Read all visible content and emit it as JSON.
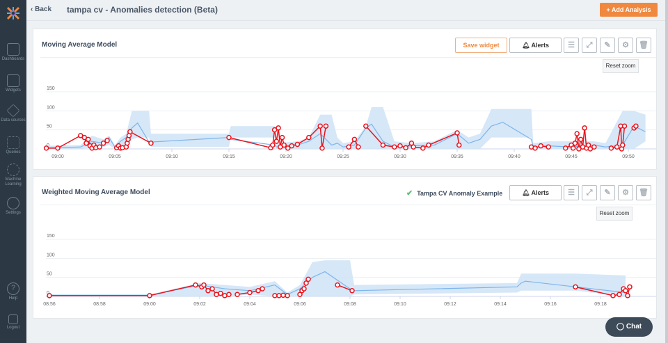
{
  "header": {
    "back": "Back",
    "title": "tampa cv - Anomalies detection (Beta)",
    "add_analysis": "+ Add Analysis"
  },
  "sidebar": {
    "items": [
      {
        "label": "Dashboards"
      },
      {
        "label": "Widgets"
      },
      {
        "label": "Data sources"
      },
      {
        "label": "Queries"
      },
      {
        "label": "Machine Learning"
      },
      {
        "label": "Settings"
      },
      {
        "label": "Help"
      },
      {
        "label": "Logout"
      }
    ]
  },
  "widgets": [
    {
      "title": "Moving Average Model",
      "save": "Save widget",
      "alerts": "Alerts",
      "reset_zoom": "Reset zoom"
    },
    {
      "title": "Weighted Moving Average Model",
      "linked": "Tampa CV Anomaly Example",
      "alerts": "Alerts",
      "reset_zoom": "Reset zoom"
    }
  ],
  "chat": "Chat",
  "colors": {
    "expected": "#7cb5ec",
    "band": "#cfe3f6",
    "anomaly": "#e8141e",
    "accent": "#f0883e"
  },
  "chart_data": [
    {
      "type": "line",
      "title": "Moving Average Model",
      "yticks": [
        "0",
        "50",
        "100",
        "150"
      ],
      "ylim": [
        0,
        150
      ],
      "xticks": [
        "09:00",
        "09:05",
        "09:10",
        "09:15",
        "09:20",
        "09:25",
        "09:30",
        "09:35",
        "09:40",
        "09:45",
        "09:50"
      ],
      "expected": [
        [
          "08:59:00",
          2,
          0,
          8
        ],
        [
          "09:02:00",
          5,
          0,
          10
        ],
        [
          "09:03:00",
          20,
          5,
          35
        ],
        [
          "09:04:00",
          15,
          5,
          25
        ],
        [
          "09:04:30",
          30,
          10,
          35
        ],
        [
          "09:05:00",
          5,
          0,
          10
        ],
        [
          "09:05:30",
          20,
          0,
          30
        ],
        [
          "09:06:00",
          30,
          10,
          40
        ],
        [
          "09:06:30",
          55,
          25,
          100
        ],
        [
          "09:07:00",
          68,
          30,
          100
        ],
        [
          "09:08:00",
          18,
          30,
          100
        ],
        [
          "09:08:10",
          18,
          5,
          40
        ],
        [
          "09:15:00",
          30,
          5,
          40
        ],
        [
          "09:15:10",
          25,
          30,
          60
        ],
        [
          "09:19:00",
          10,
          30,
          60
        ],
        [
          "09:19:10",
          5,
          0,
          15
        ],
        [
          "09:21:00",
          10,
          0,
          20
        ],
        [
          "09:22:00",
          20,
          0,
          30
        ],
        [
          "09:23:00",
          40,
          0,
          90
        ],
        [
          "09:24:00",
          10,
          0,
          90
        ],
        [
          "09:24:30",
          15,
          0,
          30
        ],
        [
          "09:25:00",
          5,
          0,
          15
        ],
        [
          "09:26:00",
          10,
          0,
          20
        ],
        [
          "09:27:00",
          55,
          0,
          60
        ],
        [
          "09:27:30",
          65,
          0,
          110
        ],
        [
          "09:28:30",
          20,
          0,
          110
        ],
        [
          "09:29:30",
          5,
          0,
          20
        ],
        [
          "09:31:00",
          8,
          0,
          15
        ],
        [
          "09:33:00",
          10,
          0,
          20
        ],
        [
          "09:35:00",
          40,
          0,
          50
        ],
        [
          "09:36:00",
          15,
          0,
          30
        ],
        [
          "09:37:00",
          25,
          0,
          40
        ],
        [
          "09:38:00",
          60,
          30,
          105
        ],
        [
          "09:39:00",
          70,
          30,
          105
        ],
        [
          "09:41:30",
          25,
          30,
          105
        ],
        [
          "09:41:40",
          5,
          0,
          15
        ],
        [
          "09:43:00",
          8,
          0,
          20
        ],
        [
          "09:45:00",
          5,
          0,
          20
        ],
        [
          "09:47:00",
          10,
          0,
          20
        ],
        [
          "09:48:00",
          5,
          0,
          15
        ],
        [
          "09:49:30",
          10,
          0,
          100
        ],
        [
          "09:50:30",
          60,
          0,
          100
        ],
        [
          "09:51:30",
          45,
          20,
          90
        ]
      ],
      "anomalies": [
        [
          "08:59:00",
          2
        ],
        [
          "09:00:00",
          2
        ],
        [
          "09:02:00",
          35
        ],
        [
          "09:02:20",
          30
        ],
        [
          "09:02:30",
          15
        ],
        [
          "09:02:40",
          25
        ],
        [
          "09:02:50",
          8
        ],
        [
          "09:03:00",
          2
        ],
        [
          "09:03:10",
          10
        ],
        [
          "09:03:20",
          3
        ],
        [
          "09:03:40",
          5
        ],
        [
          "09:04:00",
          15
        ],
        [
          "09:04:20",
          22
        ],
        null,
        [
          "09:05:10",
          3
        ],
        [
          "09:05:20",
          8
        ],
        [
          "09:05:30",
          2
        ],
        [
          "09:05:40",
          3
        ],
        null,
        [
          "09:06:00",
          5
        ],
        [
          "09:06:05",
          15
        ],
        [
          "09:06:10",
          25
        ],
        [
          "09:06:15",
          35
        ],
        [
          "09:06:20",
          45
        ],
        [
          "09:08:10",
          15
        ],
        null,
        [
          "09:15:00",
          30
        ],
        [
          "09:18:40",
          3
        ],
        [
          "09:18:50",
          10
        ],
        [
          "09:19:00",
          50
        ],
        [
          "09:19:10",
          20
        ],
        [
          "09:19:20",
          55
        ],
        [
          "09:19:30",
          5
        ],
        [
          "09:19:40",
          30
        ],
        [
          "09:19:50",
          10
        ],
        [
          "09:20:10",
          2
        ],
        [
          "09:20:30",
          8
        ],
        [
          "09:21:00",
          12
        ],
        [
          "09:22:00",
          30
        ],
        [
          "09:23:00",
          60
        ],
        [
          "09:23:10",
          2
        ],
        [
          "09:23:30",
          60
        ],
        null,
        [
          "09:25:30",
          5
        ],
        [
          "09:26:00",
          25
        ],
        [
          "09:26:20",
          5
        ],
        null,
        [
          "09:27:00",
          60
        ],
        [
          "09:28:30",
          10
        ],
        [
          "09:29:30",
          5
        ],
        [
          "09:30:00",
          8
        ],
        [
          "09:30:30",
          3
        ],
        [
          "09:31:00",
          15
        ],
        [
          "09:31:10",
          5
        ],
        [
          "09:32:00",
          2
        ],
        [
          "09:32:30",
          10
        ],
        [
          "09:35:00",
          42
        ],
        [
          "09:35:10",
          10
        ],
        null,
        [
          "09:41:30",
          5
        ],
        [
          "09:41:50",
          2
        ],
        [
          "09:42:20",
          8
        ],
        [
          "09:43:00",
          5
        ],
        null,
        [
          "09:44:30",
          2
        ],
        [
          "09:45:00",
          10
        ],
        [
          "09:45:10",
          2
        ],
        [
          "09:45:20",
          15
        ],
        [
          "09:45:30",
          40
        ],
        [
          "09:45:40",
          0
        ],
        [
          "09:45:50",
          25
        ],
        [
          "09:46:00",
          5
        ],
        [
          "09:46:10",
          55
        ],
        [
          "09:46:20",
          2
        ],
        [
          "09:46:30",
          10
        ],
        [
          "09:46:40",
          0
        ],
        [
          "09:47:00",
          5
        ],
        null,
        [
          "09:48:30",
          2
        ],
        [
          "09:49:00",
          5
        ],
        [
          "09:49:20",
          60
        ],
        [
          "09:49:25",
          0
        ],
        [
          "09:49:30",
          10
        ],
        [
          "09:49:40",
          60
        ],
        null,
        [
          "09:50:30",
          55
        ],
        [
          "09:50:40",
          60
        ]
      ]
    },
    {
      "type": "line",
      "title": "Weighted Moving Average Model",
      "yticks": [
        "0",
        "50",
        "100",
        "150"
      ],
      "ylim": [
        0,
        150
      ],
      "xticks": [
        "08:56",
        "08:58",
        "09:00",
        "09:02",
        "09:04",
        "09:06",
        "09:08",
        "09:10",
        "09:12",
        "09:14",
        "09:16",
        "09:18"
      ],
      "expected": [
        [
          "08:56:00",
          3,
          0,
          5
        ],
        [
          "09:00:00",
          3,
          0,
          5
        ],
        [
          "09:02:00",
          30,
          0,
          35
        ],
        [
          "09:03:00",
          20,
          0,
          30
        ],
        [
          "09:04:00",
          15,
          5,
          25
        ],
        [
          "09:05:00",
          30,
          0,
          40
        ],
        [
          "09:05:30",
          5,
          0,
          10
        ],
        [
          "09:06:00",
          20,
          0,
          30
        ],
        [
          "09:06:30",
          50,
          0,
          90
        ],
        [
          "09:07:00",
          65,
          0,
          95
        ],
        [
          "09:08:00",
          20,
          0,
          95
        ],
        [
          "09:08:10",
          15,
          5,
          30
        ],
        [
          "09:14:40",
          25,
          10,
          35
        ],
        [
          "09:14:50",
          35,
          15,
          60
        ],
        [
          "09:15:00",
          40,
          15,
          60
        ],
        [
          "09:17:00",
          25,
          15,
          60
        ],
        [
          "09:19:00",
          10,
          0,
          55
        ]
      ],
      "anomalies": [
        [
          "08:56:00",
          2
        ],
        [
          "09:00:00",
          2
        ],
        [
          "09:01:50",
          30
        ],
        [
          "09:02:05",
          25
        ],
        [
          "09:02:10",
          30
        ],
        [
          "09:02:20",
          15
        ],
        [
          "09:02:30",
          20
        ],
        [
          "09:02:40",
          5
        ],
        [
          "09:02:50",
          8
        ],
        [
          "09:03:00",
          2
        ],
        [
          "09:03:10",
          5
        ],
        null,
        [
          "09:03:30",
          5
        ],
        [
          "09:04:00",
          10
        ],
        [
          "09:04:20",
          15
        ],
        [
          "09:04:30",
          20
        ],
        null,
        [
          "09:05:00",
          2
        ],
        [
          "09:05:10",
          2
        ],
        [
          "09:05:20",
          3
        ],
        [
          "09:05:30",
          2
        ],
        null,
        [
          "09:06:00",
          5
        ],
        [
          "09:06:05",
          15
        ],
        [
          "09:06:10",
          20
        ],
        [
          "09:06:15",
          35
        ],
        [
          "09:06:20",
          45
        ],
        null,
        [
          "09:07:30",
          30
        ],
        [
          "09:08:05",
          15
        ],
        null,
        [
          "09:17:00",
          25
        ],
        [
          "09:18:30",
          2
        ],
        [
          "09:18:45",
          5
        ],
        [
          "09:18:55",
          20
        ],
        [
          "09:19:00",
          15
        ],
        [
          "09:19:05",
          2
        ],
        [
          "09:19:10",
          25
        ]
      ]
    }
  ]
}
